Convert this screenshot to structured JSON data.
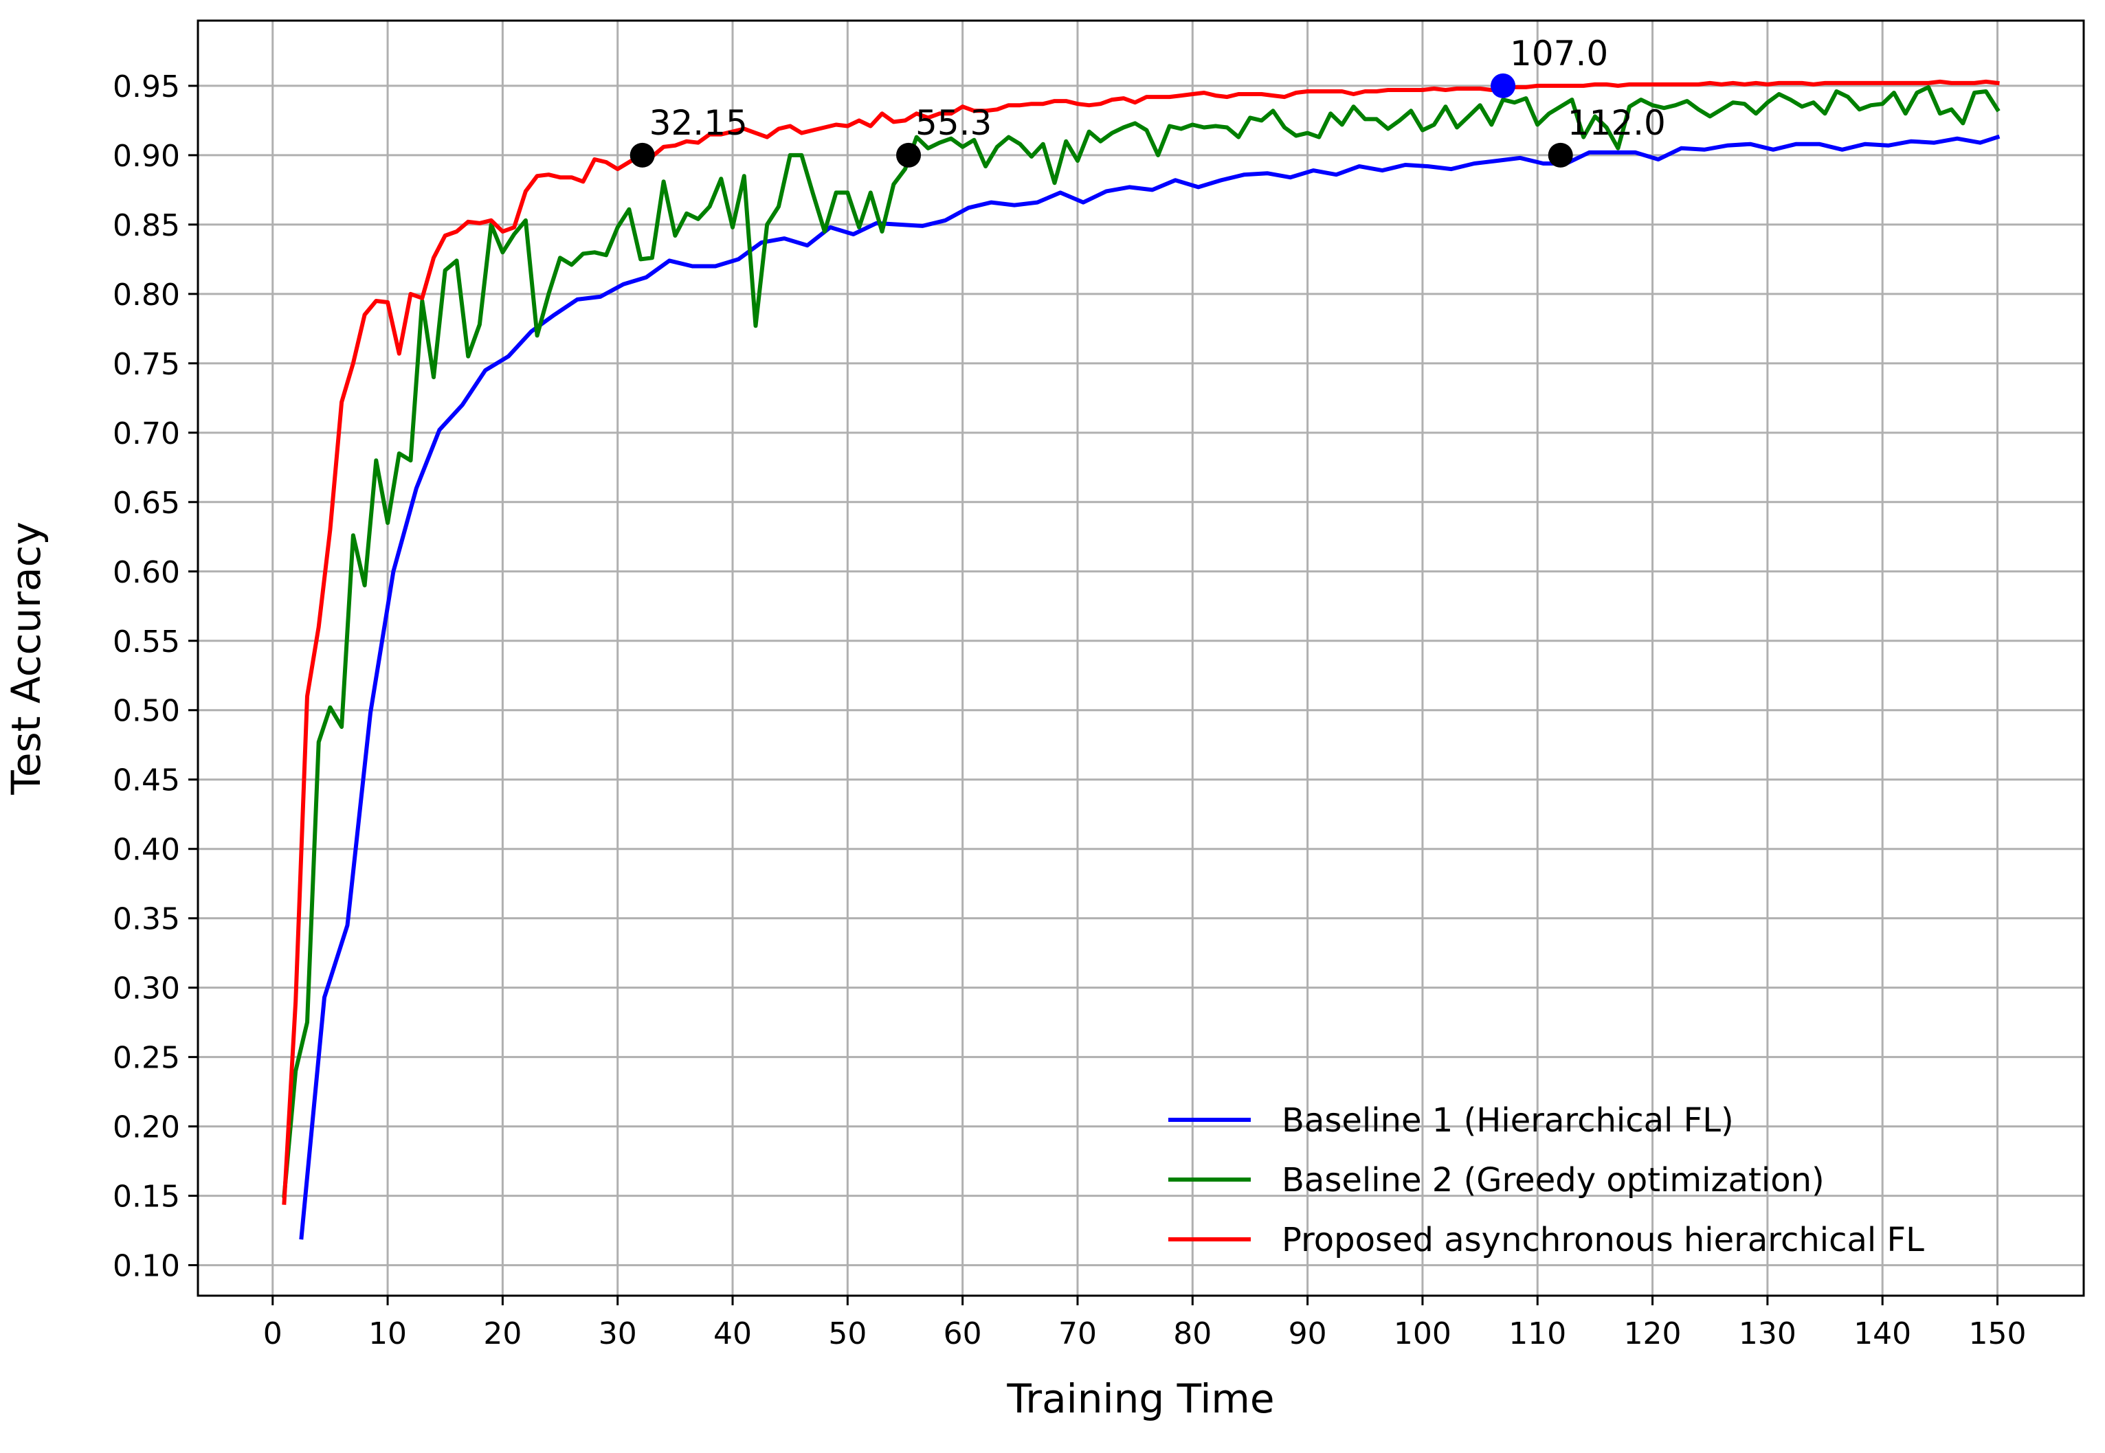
{
  "chart_data": {
    "type": "line",
    "title": "",
    "xlabel": "Training Time",
    "ylabel": "Test Accuracy",
    "xlim": [
      -6.5,
      157.5
    ],
    "ylim": [
      0.078,
      0.997
    ],
    "x_ticks": [
      0,
      10,
      20,
      30,
      40,
      50,
      60,
      70,
      80,
      90,
      100,
      110,
      120,
      130,
      140,
      150
    ],
    "y_ticks": [
      0.1,
      0.15,
      0.2,
      0.25,
      0.3,
      0.35,
      0.4,
      0.45,
      0.5,
      0.55,
      0.6,
      0.65,
      0.7,
      0.75,
      0.8,
      0.85,
      0.9,
      0.95
    ],
    "grid": true,
    "legend_position": "lower-right",
    "series": [
      {
        "name": "Baseline 1 (Hierarchical FL)",
        "color": "#0000ff",
        "x": [
          2.5,
          4.5,
          6.5,
          8.5,
          10.5,
          12.5,
          14.5,
          16.5,
          18.5,
          20.5,
          22.5,
          24.5,
          26.5,
          28.5,
          30.5,
          32.5,
          34.5,
          36.5,
          38.5,
          40.5,
          42.5,
          44.5,
          46.5,
          48.5,
          50.5,
          52.5,
          54.5,
          56.5,
          58.5,
          60.5,
          62.5,
          64.5,
          66.5,
          68.5,
          70.5,
          72.5,
          74.5,
          76.5,
          78.5,
          80.5,
          82.5,
          84.5,
          86.5,
          88.5,
          90.5,
          92.5,
          94.5,
          96.5,
          98.5,
          100.5,
          102.5,
          104.5,
          106.5,
          108.5,
          110.5,
          112.5,
          114.5,
          116.5,
          118.5,
          120.5,
          122.5,
          124.5,
          126.5,
          128.5,
          130.5,
          132.5,
          134.5,
          136.5,
          138.5,
          140.5,
          142.5,
          144.5,
          146.5,
          148.5,
          150.0
        ],
        "values": [
          0.12,
          0.293,
          0.345,
          0.498,
          0.6,
          0.66,
          0.702,
          0.72,
          0.745,
          0.755,
          0.773,
          0.785,
          0.796,
          0.798,
          0.807,
          0.812,
          0.824,
          0.82,
          0.82,
          0.825,
          0.837,
          0.84,
          0.835,
          0.848,
          0.843,
          0.851,
          0.85,
          0.849,
          0.853,
          0.862,
          0.866,
          0.864,
          0.866,
          0.873,
          0.866,
          0.874,
          0.877,
          0.875,
          0.882,
          0.877,
          0.882,
          0.886,
          0.887,
          0.884,
          0.889,
          0.886,
          0.892,
          0.889,
          0.893,
          0.892,
          0.89,
          0.894,
          0.896,
          0.898,
          0.894,
          0.894,
          0.902,
          0.902,
          0.902,
          0.897,
          0.905,
          0.904,
          0.907,
          0.908,
          0.904,
          0.908,
          0.908,
          0.904,
          0.908,
          0.907,
          0.91,
          0.909,
          0.912,
          0.909,
          0.913
        ]
      },
      {
        "name": "Baseline 2 (Greedy optimization)",
        "color": "#008000",
        "x": [
          1,
          2,
          3,
          4,
          5,
          6,
          7,
          8,
          9,
          10,
          11,
          12,
          13,
          14,
          15,
          16,
          17,
          18,
          19,
          20,
          21,
          22,
          23,
          24,
          25,
          26,
          27,
          28,
          29,
          30,
          31,
          32,
          33,
          34,
          35,
          36,
          37,
          38,
          39,
          40,
          41,
          42,
          43,
          44,
          45,
          46,
          47,
          48,
          49,
          50,
          51,
          52,
          53,
          54,
          55,
          56,
          57,
          58,
          59,
          60,
          61,
          62,
          63,
          64,
          65,
          66,
          67,
          68,
          69,
          70,
          71,
          72,
          73,
          74,
          75,
          76,
          77,
          78,
          79,
          80,
          81,
          82,
          83,
          84,
          85,
          86,
          87,
          88,
          89,
          90,
          91,
          92,
          93,
          94,
          95,
          96,
          97,
          98,
          99,
          100,
          101,
          102,
          103,
          104,
          105,
          106,
          107,
          108,
          109,
          110,
          111,
          112,
          113,
          114,
          115,
          116,
          117,
          118,
          119,
          120,
          121,
          122,
          123,
          124,
          125,
          126,
          127,
          128,
          129,
          130,
          131,
          132,
          133,
          134,
          135,
          136,
          137,
          138,
          139,
          140,
          141,
          142,
          143,
          144,
          145,
          146,
          147,
          148,
          149,
          150
        ],
        "values": [
          0.15,
          0.24,
          0.275,
          0.477,
          0.502,
          0.488,
          0.626,
          0.59,
          0.68,
          0.635,
          0.685,
          0.68,
          0.795,
          0.74,
          0.817,
          0.824,
          0.755,
          0.778,
          0.85,
          0.83,
          0.843,
          0.853,
          0.77,
          0.8,
          0.826,
          0.821,
          0.829,
          0.83,
          0.828,
          0.848,
          0.861,
          0.825,
          0.826,
          0.881,
          0.842,
          0.858,
          0.854,
          0.863,
          0.883,
          0.848,
          0.885,
          0.777,
          0.85,
          0.863,
          0.9,
          0.9,
          0.872,
          0.845,
          0.873,
          0.873,
          0.848,
          0.873,
          0.845,
          0.879,
          0.89,
          0.913,
          0.905,
          0.909,
          0.912,
          0.906,
          0.911,
          0.892,
          0.906,
          0.913,
          0.908,
          0.899,
          0.908,
          0.88,
          0.91,
          0.896,
          0.917,
          0.91,
          0.916,
          0.92,
          0.923,
          0.918,
          0.9,
          0.921,
          0.919,
          0.922,
          0.92,
          0.921,
          0.92,
          0.913,
          0.927,
          0.925,
          0.932,
          0.92,
          0.914,
          0.916,
          0.913,
          0.93,
          0.922,
          0.935,
          0.926,
          0.926,
          0.919,
          0.925,
          0.932,
          0.918,
          0.922,
          0.935,
          0.92,
          0.928,
          0.936,
          0.922,
          0.94,
          0.938,
          0.941,
          0.922,
          0.93,
          0.935,
          0.94,
          0.913,
          0.928,
          0.92,
          0.905,
          0.935,
          0.94,
          0.936,
          0.934,
          0.936,
          0.939,
          0.933,
          0.928,
          0.933,
          0.938,
          0.937,
          0.93,
          0.938,
          0.944,
          0.94,
          0.935,
          0.938,
          0.93,
          0.946,
          0.942,
          0.933,
          0.936,
          0.937,
          0.945,
          0.93,
          0.945,
          0.949,
          0.93,
          0.933,
          0.923,
          0.945,
          0.946,
          0.933
        ]
      },
      {
        "name": "Proposed asynchronous hierarchical FL",
        "color": "#ff0000",
        "x": [
          1,
          2,
          3,
          4,
          5,
          6,
          7,
          8,
          9,
          10,
          11,
          12,
          13,
          14,
          15,
          16,
          17,
          18,
          19,
          20,
          21,
          22,
          23,
          24,
          25,
          26,
          27,
          28,
          29,
          30,
          31,
          32,
          33,
          34,
          35,
          36,
          37,
          38,
          39,
          40,
          41,
          42,
          43,
          44,
          45,
          46,
          47,
          48,
          49,
          50,
          51,
          52,
          53,
          54,
          55,
          56,
          57,
          58,
          59,
          60,
          61,
          62,
          63,
          64,
          65,
          66,
          67,
          68,
          69,
          70,
          71,
          72,
          73,
          74,
          75,
          76,
          77,
          78,
          79,
          80,
          81,
          82,
          83,
          84,
          85,
          86,
          87,
          88,
          89,
          90,
          91,
          92,
          93,
          94,
          95,
          96,
          97,
          98,
          99,
          100,
          101,
          102,
          103,
          104,
          105,
          106,
          107,
          108,
          109,
          110,
          111,
          112,
          113,
          114,
          115,
          116,
          117,
          118,
          119,
          120,
          121,
          122,
          123,
          124,
          125,
          126,
          127,
          128,
          129,
          130,
          131,
          132,
          133,
          134,
          135,
          136,
          137,
          138,
          139,
          140,
          141,
          142,
          143,
          144,
          145,
          146,
          147,
          148,
          149,
          150
        ],
        "values": [
          0.145,
          0.29,
          0.51,
          0.56,
          0.63,
          0.722,
          0.75,
          0.785,
          0.795,
          0.794,
          0.757,
          0.8,
          0.797,
          0.826,
          0.842,
          0.845,
          0.852,
          0.851,
          0.853,
          0.845,
          0.848,
          0.874,
          0.885,
          0.886,
          0.884,
          0.884,
          0.881,
          0.897,
          0.895,
          0.89,
          0.895,
          0.9,
          0.899,
          0.906,
          0.907,
          0.91,
          0.909,
          0.915,
          0.915,
          0.917,
          0.919,
          0.916,
          0.913,
          0.919,
          0.921,
          0.916,
          0.918,
          0.92,
          0.922,
          0.921,
          0.925,
          0.921,
          0.93,
          0.924,
          0.925,
          0.93,
          0.927,
          0.93,
          0.93,
          0.935,
          0.932,
          0.932,
          0.933,
          0.936,
          0.936,
          0.937,
          0.937,
          0.939,
          0.939,
          0.937,
          0.936,
          0.937,
          0.94,
          0.941,
          0.938,
          0.942,
          0.942,
          0.942,
          0.943,
          0.944,
          0.945,
          0.943,
          0.942,
          0.944,
          0.944,
          0.944,
          0.943,
          0.942,
          0.945,
          0.946,
          0.946,
          0.946,
          0.946,
          0.944,
          0.946,
          0.946,
          0.947,
          0.947,
          0.947,
          0.947,
          0.948,
          0.947,
          0.948,
          0.948,
          0.948,
          0.947,
          0.949,
          0.949,
          0.949,
          0.95,
          0.95,
          0.95,
          0.95,
          0.95,
          0.951,
          0.951,
          0.95,
          0.951,
          0.951,
          0.951,
          0.951,
          0.951,
          0.951,
          0.951,
          0.952,
          0.951,
          0.952,
          0.951,
          0.952,
          0.951,
          0.952,
          0.952,
          0.952,
          0.951,
          0.952,
          0.952,
          0.952,
          0.952,
          0.952,
          0.952,
          0.952,
          0.952,
          0.952,
          0.952,
          0.953,
          0.952,
          0.952,
          0.952,
          0.953,
          0.952
        ]
      }
    ],
    "annotations": [
      {
        "text": "107.0",
        "x": 107.0,
        "y": 0.95,
        "color": "#0000ff"
      },
      {
        "text": "32.15",
        "x": 32.15,
        "y": 0.9,
        "color": "#000000"
      },
      {
        "text": "55.3",
        "x": 55.3,
        "y": 0.9,
        "color": "#000000"
      },
      {
        "text": "112.0",
        "x": 112.0,
        "y": 0.9,
        "color": "#000000"
      }
    ]
  }
}
